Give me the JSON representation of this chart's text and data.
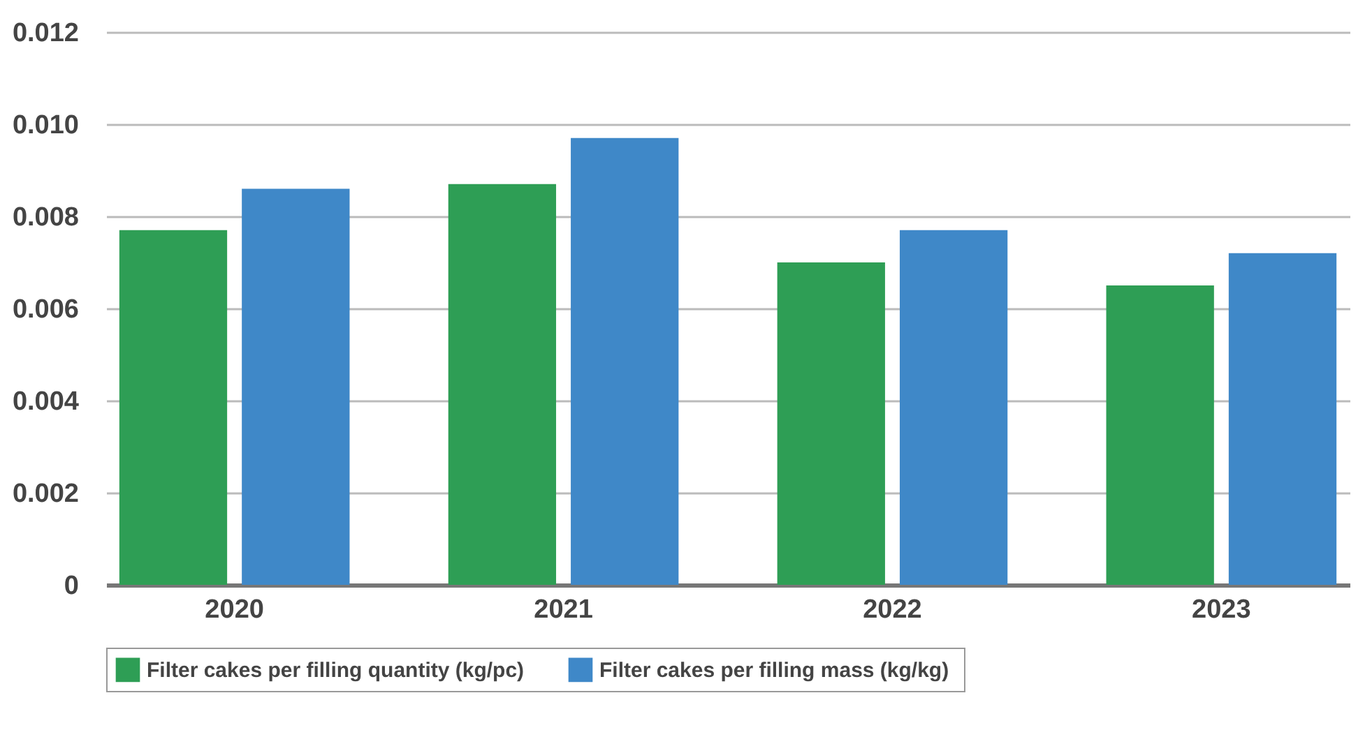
{
  "chart_data": {
    "type": "bar",
    "categories": [
      "2020",
      "2021",
      "2022",
      "2023"
    ],
    "series": [
      {
        "name": "Filter cakes per filling quantity (kg/pc)",
        "color": "#2e9e55",
        "values": [
          0.0077,
          0.0087,
          0.007,
          0.0065
        ]
      },
      {
        "name": "Filter cakes per filling mass  (kg/kg)",
        "color": "#3f88c8",
        "values": [
          0.0086,
          0.0097,
          0.0077,
          0.0072
        ]
      }
    ],
    "ylim": [
      0,
      0.012
    ],
    "yticks": [
      "0",
      0.002,
      0.004,
      0.006,
      0.008,
      "0.010",
      0.012
    ],
    "grid": "y",
    "legend": "bottom"
  }
}
